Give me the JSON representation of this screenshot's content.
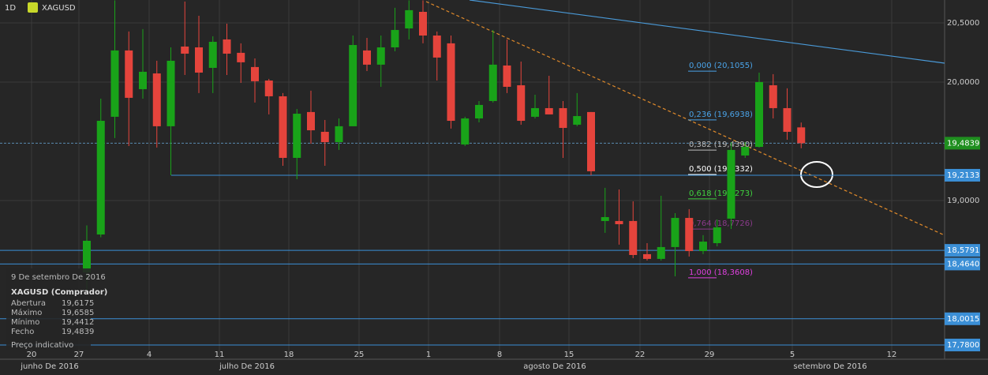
{
  "header": {
    "interval": "1D",
    "symbol": "XAGUSD"
  },
  "chart_data": {
    "type": "candlestick",
    "candles": [
      [
        18.393,
        18.79,
        18.23,
        18.66
      ],
      [
        18.713,
        19.86,
        18.69,
        19.673
      ],
      [
        19.707,
        20.69,
        19.527,
        20.267
      ],
      [
        20.267,
        20.427,
        19.46,
        19.867
      ],
      [
        19.94,
        20.447,
        19.86,
        20.087
      ],
      [
        20.073,
        20.18,
        19.447,
        19.627
      ],
      [
        19.627,
        20.293,
        19.213,
        20.18
      ],
      [
        20.3,
        20.68,
        20.06,
        20.24
      ],
      [
        20.293,
        20.56,
        19.907,
        20.08
      ],
      [
        20.12,
        20.387,
        19.907,
        20.34
      ],
      [
        20.36,
        20.493,
        20.06,
        20.24
      ],
      [
        20.247,
        20.327,
        19.993,
        20.167
      ],
      [
        20.127,
        20.2,
        19.827,
        20.007
      ],
      [
        20.013,
        20.027,
        19.727,
        19.88
      ],
      [
        19.88,
        19.907,
        19.293,
        19.36
      ],
      [
        19.36,
        19.773,
        19.18,
        19.733
      ],
      [
        19.747,
        19.927,
        19.48,
        19.593
      ],
      [
        19.58,
        19.68,
        19.293,
        19.493
      ],
      [
        19.493,
        19.693,
        19.427,
        19.627
      ],
      [
        19.627,
        20.393,
        19.627,
        20.313
      ],
      [
        20.267,
        20.373,
        20.093,
        20.147
      ],
      [
        20.147,
        20.393,
        19.96,
        20.293
      ],
      [
        20.293,
        20.627,
        20.26,
        20.44
      ],
      [
        20.453,
        20.69,
        20.36,
        20.607
      ],
      [
        20.593,
        20.69,
        20.327,
        20.393
      ],
      [
        20.393,
        20.427,
        20.013,
        20.207
      ],
      [
        20.327,
        20.393,
        19.607,
        19.673
      ],
      [
        19.473,
        19.707,
        19.46,
        19.693
      ],
      [
        19.693,
        19.84,
        19.66,
        19.807
      ],
      [
        19.84,
        20.44,
        19.827,
        20.147
      ],
      [
        20.14,
        20.36,
        19.907,
        19.96
      ],
      [
        19.973,
        20.173,
        19.64,
        19.673
      ],
      [
        19.707,
        19.893,
        19.693,
        19.78
      ],
      [
        19.78,
        20.053,
        19.727,
        19.727
      ],
      [
        19.78,
        19.84,
        19.36,
        19.613
      ],
      [
        19.64,
        19.907,
        19.627,
        19.713
      ],
      [
        19.747,
        19.747,
        19.213,
        19.247
      ],
      [
        18.827,
        19.107,
        18.727,
        18.86
      ],
      [
        18.827,
        19.093,
        18.627,
        18.8
      ],
      [
        18.827,
        18.993,
        18.513,
        18.54
      ],
      [
        18.547,
        18.64,
        18.493,
        18.507
      ],
      [
        18.507,
        19.04,
        18.493,
        18.607
      ],
      [
        18.607,
        18.893,
        18.36,
        18.853
      ],
      [
        18.853,
        18.927,
        18.527,
        18.573
      ],
      [
        18.573,
        18.707,
        18.547,
        18.653
      ],
      [
        18.64,
        18.84,
        18.613,
        18.773
      ],
      [
        18.847,
        19.493,
        18.76,
        19.427
      ],
      [
        19.38,
        19.493,
        19.36,
        19.453
      ],
      [
        19.453,
        20.08,
        19.447,
        20.0
      ],
      [
        19.973,
        20.067,
        19.693,
        19.78
      ],
      [
        19.78,
        19.947,
        19.513,
        19.58
      ],
      [
        19.6175,
        19.6585,
        19.4412,
        19.4839
      ]
    ],
    "up_color": "#19a319",
    "down_color": "#e5443c",
    "ylim": [
      17.66,
      20.693
    ],
    "yticks": [
      {
        "value": 20.5,
        "label": "20,5000"
      },
      {
        "value": 20,
        "label": "20,0000"
      },
      {
        "value": 19,
        "label": "19,0000"
      }
    ],
    "xticks": [
      "20",
      "27",
      "4",
      "11",
      "18",
      "25",
      "1",
      "8",
      "15",
      "22",
      "29",
      "5",
      "12"
    ],
    "months": [
      "junho De 2016",
      "julho De 2016",
      "agosto De 2016",
      "setembro De 2016"
    ],
    "levels": [
      {
        "value": 19.4839,
        "label": "19,4839",
        "color": "#1f8f1f"
      },
      {
        "value": 19.2133,
        "label": "19,2133",
        "color": "#3b8fd6"
      },
      {
        "value": 18.5791,
        "label": "18,5791",
        "color": "#3b8fd6"
      },
      {
        "value": 18.464,
        "label": "18,4640",
        "color": "#3b8fd6"
      },
      {
        "value": 18.0015,
        "label": "18,0015",
        "color": "#3b8fd6"
      },
      {
        "value": 17.78,
        "label": "17,7800",
        "color": "#3b8fd6"
      }
    ],
    "fib": [
      {
        "value": 20.1055,
        "label": "0,000 (20,1055)",
        "color": "#4aa3e8"
      },
      {
        "value": 19.6938,
        "label": "0,236 (19,6938)",
        "color": "#4aa3e8"
      },
      {
        "value": 19.439,
        "label": "0,382 (19,4390)",
        "color": "#bbbbbb"
      },
      {
        "value": 19.2332,
        "label": "0,500 (19,2332)",
        "color": "#ffffff"
      },
      {
        "value": 19.0273,
        "label": "0,618 (19,0273)",
        "color": "#3fd43f"
      },
      {
        "value": 18.7726,
        "label": "0,764 (18,7726)",
        "color": "#8a3a8a"
      },
      {
        "value": 18.3608,
        "label": "1,000 (18,3608)",
        "color": "#e040e0"
      }
    ]
  },
  "info": {
    "date": "9 De setembro De 2016",
    "title": "XAGUSD (Comprador)",
    "rows": [
      [
        "Abertura",
        "19,6175"
      ],
      [
        "Máximo",
        "19,6585"
      ],
      [
        "Mínimo",
        "19,4412"
      ],
      [
        "Fecho",
        "19,4839"
      ]
    ],
    "footer": "Preço indicativo"
  }
}
